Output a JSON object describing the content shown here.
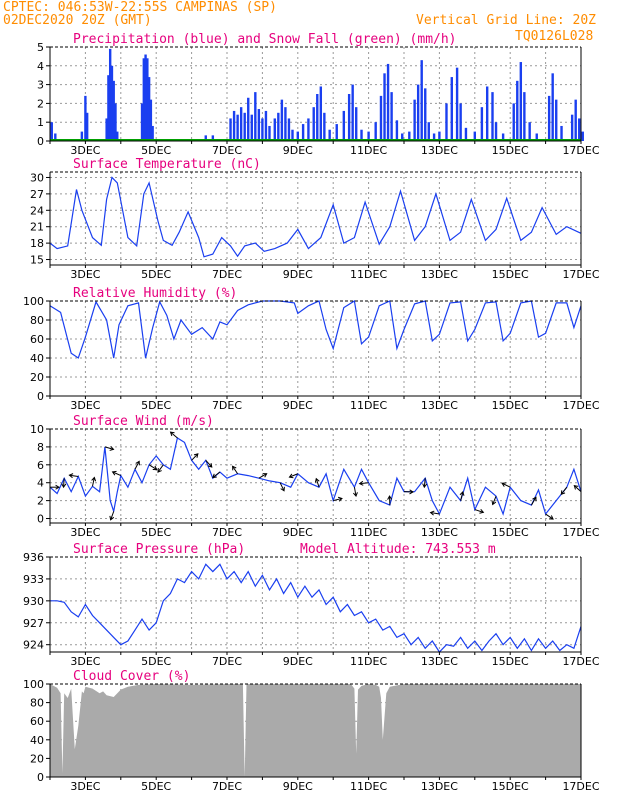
{
  "header": {
    "left_line1": "CPTEC:   046:53W-22:55S  CAMPINAS (SP)",
    "left_line2": "02DEC2020 20Z (GMT)",
    "right_line1": "Vertical Grid Line: 20Z",
    "right_line2": "TQ0126L028"
  },
  "colors": {
    "header": "#ff8c00",
    "title": "#e6007e",
    "line": "#1a3ff0",
    "precip": "#1a3ff0",
    "snow": "#00a000",
    "cloud": "#aaaaaa"
  },
  "x_axis": {
    "labels": [
      "3DEC",
      "5DEC",
      "7DEC",
      "9DEC",
      "11DEC",
      "13DEC",
      "15DEC",
      "17DEC"
    ]
  },
  "chart_data": [
    {
      "type": "bar",
      "title": "Precipitation (blue) and Snow Fall (green) (mm/h)",
      "ylim": [
        0,
        5
      ],
      "yticks": [
        "0",
        "1",
        "2",
        "3",
        "4",
        "5"
      ],
      "series": [
        {
          "name": "Precipitation",
          "values": [
            [
              2.05,
              1.0
            ],
            [
              2.15,
              0.4
            ],
            [
              2.9,
              0.5
            ],
            [
              3.0,
              2.4
            ],
            [
              3.05,
              1.5
            ],
            [
              3.6,
              1.2
            ],
            [
              3.65,
              3.5
            ],
            [
              3.7,
              4.9
            ],
            [
              3.75,
              4.0
            ],
            [
              3.8,
              3.2
            ],
            [
              3.85,
              2.0
            ],
            [
              3.9,
              0.5
            ],
            [
              4.6,
              2.0
            ],
            [
              4.65,
              4.4
            ],
            [
              4.7,
              4.6
            ],
            [
              4.75,
              4.4
            ],
            [
              4.8,
              3.4
            ],
            [
              4.85,
              2.2
            ],
            [
              4.9,
              0.8
            ],
            [
              6.4,
              0.3
            ],
            [
              6.6,
              0.3
            ],
            [
              7.1,
              1.2
            ],
            [
              7.2,
              1.6
            ],
            [
              7.3,
              1.4
            ],
            [
              7.4,
              1.8
            ],
            [
              7.5,
              1.5
            ],
            [
              7.6,
              2.3
            ],
            [
              7.7,
              1.4
            ],
            [
              7.8,
              2.6
            ],
            [
              7.9,
              1.7
            ],
            [
              8.0,
              1.2
            ],
            [
              8.1,
              1.6
            ],
            [
              8.2,
              0.8
            ],
            [
              8.35,
              1.2
            ],
            [
              8.45,
              1.5
            ],
            [
              8.55,
              2.2
            ],
            [
              8.65,
              1.8
            ],
            [
              8.75,
              1.2
            ],
            [
              8.85,
              0.6
            ],
            [
              9.0,
              0.5
            ],
            [
              9.15,
              0.9
            ],
            [
              9.3,
              1.2
            ],
            [
              9.45,
              1.8
            ],
            [
              9.55,
              2.5
            ],
            [
              9.65,
              2.9
            ],
            [
              9.75,
              1.5
            ],
            [
              9.9,
              0.6
            ],
            [
              10.1,
              0.9
            ],
            [
              10.3,
              1.6
            ],
            [
              10.45,
              2.5
            ],
            [
              10.55,
              3.0
            ],
            [
              10.65,
              1.8
            ],
            [
              10.8,
              0.6
            ],
            [
              11.0,
              0.5
            ],
            [
              11.2,
              1.0
            ],
            [
              11.35,
              2.4
            ],
            [
              11.45,
              3.6
            ],
            [
              11.55,
              4.1
            ],
            [
              11.65,
              2.6
            ],
            [
              11.8,
              1.1
            ],
            [
              11.95,
              0.4
            ],
            [
              12.15,
              0.5
            ],
            [
              12.3,
              2.2
            ],
            [
              12.4,
              3.0
            ],
            [
              12.5,
              4.3
            ],
            [
              12.6,
              2.8
            ],
            [
              12.7,
              1.0
            ],
            [
              12.85,
              0.4
            ],
            [
              13.0,
              0.5
            ],
            [
              13.2,
              2.0
            ],
            [
              13.35,
              3.4
            ],
            [
              13.5,
              3.9
            ],
            [
              13.6,
              2.0
            ],
            [
              13.75,
              0.7
            ],
            [
              14.0,
              0.5
            ],
            [
              14.2,
              1.8
            ],
            [
              14.35,
              2.9
            ],
            [
              14.5,
              2.6
            ],
            [
              14.6,
              1.0
            ],
            [
              14.8,
              0.4
            ],
            [
              15.1,
              2.0
            ],
            [
              15.2,
              3.2
            ],
            [
              15.3,
              4.2
            ],
            [
              15.4,
              2.6
            ],
            [
              15.55,
              1.0
            ],
            [
              15.75,
              0.4
            ],
            [
              16.1,
              2.4
            ],
            [
              16.2,
              3.6
            ],
            [
              16.3,
              2.2
            ],
            [
              16.45,
              0.8
            ],
            [
              16.75,
              1.4
            ],
            [
              16.85,
              2.2
            ],
            [
              16.95,
              1.2
            ],
            [
              17.05,
              0.5
            ]
          ]
        },
        {
          "name": "Snow Fall",
          "values": [
            [
              2.0,
              0.1
            ],
            [
              17.0,
              0.1
            ]
          ]
        }
      ]
    },
    {
      "type": "line",
      "title": "Surface Temperature (nC)",
      "ylim": [
        14,
        31
      ],
      "yticks": [
        "15",
        "18",
        "21",
        "24",
        "27",
        "30"
      ],
      "series": [
        {
          "name": "Temperature",
          "x": [
            2.0,
            2.2,
            2.5,
            2.75,
            2.9,
            3.2,
            3.45,
            3.6,
            3.75,
            3.9,
            4.2,
            4.45,
            4.65,
            4.8,
            5.05,
            5.2,
            5.45,
            5.65,
            5.9,
            6.2,
            6.35,
            6.6,
            6.85,
            7.1,
            7.3,
            7.5,
            7.8,
            8.05,
            8.35,
            8.7,
            9.0,
            9.3,
            9.65,
            10.0,
            10.3,
            10.6,
            10.9,
            11.3,
            11.6,
            11.9,
            12.3,
            12.6,
            12.9,
            13.3,
            13.6,
            13.9,
            14.3,
            14.6,
            14.9,
            15.3,
            15.6,
            15.9,
            16.3,
            16.6,
            17.0
          ],
          "y": [
            18,
            17,
            17.5,
            27.8,
            24,
            19,
            17.6,
            26,
            30,
            29,
            19,
            17.5,
            27,
            29,
            22,
            18.5,
            17.6,
            20,
            23.7,
            19,
            15.5,
            16,
            19,
            17.5,
            15.6,
            17.5,
            18,
            16.5,
            17,
            18,
            20.5,
            17,
            19,
            25,
            18,
            19,
            25.5,
            17.8,
            21,
            27.5,
            18.5,
            21,
            27,
            18.5,
            20,
            26,
            18.5,
            20.5,
            26.2,
            18.5,
            20,
            24.5,
            19.6,
            21,
            19.8
          ]
        }
      ]
    },
    {
      "type": "line",
      "title": "Relative Humidity (%)",
      "ylim": [
        0,
        100
      ],
      "yticks": [
        "0",
        "20",
        "40",
        "60",
        "80",
        "100"
      ],
      "series": [
        {
          "name": "Relative Humidity",
          "x": [
            2.0,
            2.3,
            2.6,
            2.8,
            3.0,
            3.3,
            3.6,
            3.8,
            3.95,
            4.2,
            4.5,
            4.7,
            4.9,
            5.1,
            5.3,
            5.5,
            5.7,
            6.0,
            6.3,
            6.6,
            6.8,
            7.0,
            7.3,
            7.6,
            8.0,
            8.5,
            8.9,
            9.0,
            9.3,
            9.6,
            9.8,
            10.0,
            10.3,
            10.6,
            10.8,
            11.0,
            11.3,
            11.6,
            11.8,
            12.0,
            12.3,
            12.6,
            12.8,
            13.0,
            13.3,
            13.6,
            13.8,
            14.0,
            14.3,
            14.6,
            14.8,
            15.0,
            15.3,
            15.6,
            15.8,
            16.0,
            16.3,
            16.6,
            16.8,
            17.0
          ],
          "y": [
            95,
            88,
            45,
            40,
            62,
            99,
            80,
            40,
            75,
            95,
            98,
            40,
            72,
            99,
            85,
            60,
            80,
            65,
            72,
            60,
            78,
            75,
            90,
            96,
            100,
            100,
            98,
            87,
            95,
            100,
            70,
            50,
            93,
            100,
            55,
            62,
            95,
            100,
            50,
            70,
            97,
            100,
            58,
            65,
            98,
            99,
            58,
            70,
            98,
            99,
            58,
            66,
            98,
            100,
            62,
            66,
            98,
            98,
            72,
            95
          ]
        }
      ]
    },
    {
      "type": "line",
      "title": "Surface Wind (m/s)",
      "ylim": [
        -0.5,
        10
      ],
      "yticks": [
        "0",
        "2",
        "4",
        "6",
        "8",
        "10"
      ],
      "series": [
        {
          "name": "Wind Speed",
          "x": [
            2.0,
            2.2,
            2.4,
            2.6,
            2.8,
            3.0,
            3.2,
            3.4,
            3.55,
            3.7,
            3.8,
            3.9,
            4.0,
            4.2,
            4.4,
            4.6,
            4.8,
            5.0,
            5.2,
            5.4,
            5.6,
            5.8,
            6.0,
            6.2,
            6.4,
            6.6,
            6.8,
            7.0,
            7.3,
            7.6,
            7.9,
            8.2,
            8.5,
            8.8,
            9.0,
            9.3,
            9.6,
            9.8,
            10.0,
            10.3,
            10.6,
            10.8,
            11.0,
            11.3,
            11.6,
            11.8,
            12.0,
            12.3,
            12.6,
            12.8,
            13.0,
            13.3,
            13.6,
            13.8,
            14.0,
            14.3,
            14.6,
            14.8,
            15.0,
            15.3,
            15.6,
            15.8,
            16.0,
            16.3,
            16.6,
            16.8,
            17.0
          ],
          "y": [
            3.5,
            2.8,
            4.5,
            3.0,
            4.7,
            2.5,
            3.6,
            3.0,
            8.0,
            2.0,
            0.8,
            3.0,
            4.8,
            3.5,
            5.5,
            4.0,
            6.0,
            7.0,
            6.0,
            5.5,
            9.0,
            8.5,
            6.5,
            5.5,
            6.5,
            4.5,
            5.2,
            4.5,
            5.0,
            4.8,
            4.5,
            4.2,
            4.0,
            3.5,
            5.0,
            4.0,
            3.5,
            5.0,
            2.0,
            5.5,
            3.5,
            5.5,
            4.0,
            2.0,
            1.5,
            4.5,
            3.0,
            3.0,
            4.5,
            2.0,
            0.5,
            3.5,
            2.0,
            4.5,
            1.0,
            3.5,
            2.5,
            0.5,
            3.5,
            2.0,
            1.5,
            3.2,
            0.5,
            2.0,
            3.5,
            5.5,
            3.0
          ]
        }
      ]
    },
    {
      "type": "line",
      "title": "Surface Pressure (hPa)",
      "annotation": "Model Altitude: 743.553 m",
      "ylim": [
        923,
        936
      ],
      "yticks": [
        "924",
        "927",
        "930",
        "933",
        "936"
      ],
      "series": [
        {
          "name": "Pressure",
          "x": [
            2.0,
            2.2,
            2.4,
            2.6,
            2.8,
            3.0,
            3.2,
            3.4,
            3.6,
            3.8,
            4.0,
            4.2,
            4.4,
            4.6,
            4.8,
            5.0,
            5.2,
            5.4,
            5.6,
            5.8,
            6.0,
            6.2,
            6.4,
            6.6,
            6.8,
            7.0,
            7.2,
            7.4,
            7.6,
            7.8,
            8.0,
            8.2,
            8.4,
            8.6,
            8.8,
            9.0,
            9.2,
            9.4,
            9.6,
            9.8,
            10.0,
            10.2,
            10.4,
            10.6,
            10.8,
            11.0,
            11.2,
            11.4,
            11.6,
            11.8,
            12.0,
            12.2,
            12.4,
            12.6,
            12.8,
            13.0,
            13.2,
            13.4,
            13.6,
            13.8,
            14.0,
            14.2,
            14.4,
            14.6,
            14.8,
            15.0,
            15.2,
            15.4,
            15.6,
            15.8,
            16.0,
            16.2,
            16.4,
            16.6,
            16.8,
            17.0
          ],
          "y": [
            930,
            930,
            929.8,
            928.5,
            927.8,
            929.5,
            928,
            927,
            926,
            925,
            924,
            924.5,
            926,
            927.5,
            926,
            927,
            930,
            931,
            933,
            932.5,
            934,
            933,
            935,
            934,
            935,
            933,
            934,
            932.5,
            934,
            932,
            933.5,
            931.5,
            933,
            931,
            932.5,
            930.5,
            932,
            930.5,
            931.5,
            929.5,
            930.5,
            928.5,
            929.5,
            928,
            928.5,
            927,
            927.5,
            926,
            926.5,
            925,
            925.5,
            924,
            925,
            923.5,
            924.5,
            923,
            924,
            923.8,
            925,
            923.5,
            924.5,
            923.2,
            924.5,
            925.5,
            924,
            925,
            923.5,
            924.8,
            923.2,
            924.8,
            923.5,
            924.5,
            923.2,
            924,
            923.5,
            926.5
          ]
        }
      ]
    },
    {
      "type": "area",
      "title": "Cloud Cover (%)",
      "ylim": [
        0,
        100
      ],
      "yticks": [
        "0",
        "20",
        "40",
        "60",
        "80",
        "100"
      ],
      "series": [
        {
          "name": "Cloud Cover",
          "x": [
            2.0,
            2.2,
            2.3,
            2.35,
            2.4,
            2.5,
            2.6,
            2.7,
            2.8,
            2.9,
            2.95,
            3.0,
            3.2,
            3.4,
            3.5,
            3.6,
            3.8,
            4.0,
            4.2,
            4.5,
            5.0,
            6.0,
            7.0,
            7.45,
            7.5,
            7.55,
            8.0,
            9.0,
            10.0,
            10.5,
            10.6,
            10.65,
            10.7,
            10.8,
            11.0,
            11.2,
            11.3,
            11.35,
            11.4,
            11.5,
            11.6,
            12.0,
            13.0,
            14.0,
            15.0,
            16.0,
            17.0
          ],
          "y": [
            100,
            96,
            90,
            4,
            90,
            85,
            95,
            30,
            55,
            92,
            90,
            97,
            95,
            90,
            92,
            88,
            86,
            94,
            97,
            99,
            100,
            99,
            100,
            100,
            0,
            100,
            100,
            100,
            100,
            100,
            95,
            25,
            94,
            98,
            100,
            99,
            97,
            85,
            40,
            90,
            97,
            100,
            100,
            100,
            100,
            100,
            100
          ]
        }
      ]
    }
  ]
}
